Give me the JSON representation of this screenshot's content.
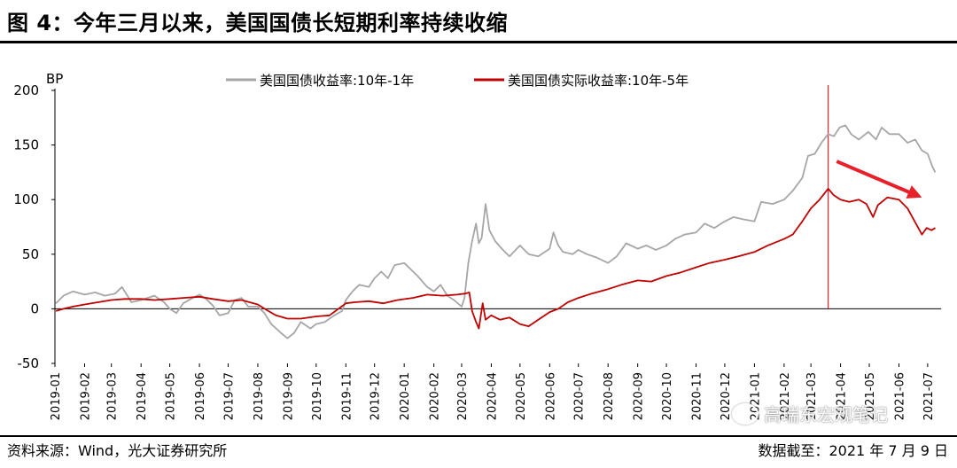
{
  "header": {
    "title": "图 4：今年三月以来，美国国债长短期利率持续收缩"
  },
  "footer": {
    "source": "资料来源：Wind，光大证券研究所",
    "date": "数据截至：2021 年 7 月 9 日"
  },
  "watermark": {
    "text": "高瑞东宏观笔记",
    "icon": "wechat-icon"
  },
  "chart_data": {
    "type": "line",
    "unit_label": "BP",
    "ylim": [
      -50,
      200
    ],
    "yticks": [
      -50,
      0,
      50,
      100,
      150,
      200
    ],
    "x_tick_labels": [
      "2019-01",
      "2019-02",
      "2019-03",
      "2019-04",
      "2019-05",
      "2019-06",
      "2019-07",
      "2019-08",
      "2019-09",
      "2019-10",
      "2019-11",
      "2019-12",
      "2020-01",
      "2020-02",
      "2020-03",
      "2020-04",
      "2020-05",
      "2020-06",
      "2020-07",
      "2020-08",
      "2020-09",
      "2020-10",
      "2020-11",
      "2020-12",
      "2021-01",
      "2021-02",
      "2021-03",
      "2021-04",
      "2021-05",
      "2021-06",
      "2021-07"
    ],
    "grid": false,
    "legend_position": "top",
    "vertical_marker": {
      "x": "2021-03-19",
      "color": "#e8202a"
    },
    "trend_arrow": {
      "from": [
        "2021-03-28",
        135
      ],
      "to": [
        "2021-06-25",
        102
      ],
      "color": "#e8202a"
    },
    "series": [
      {
        "name": "美国国债收益率:10年-1年",
        "color": "#a6a6a6",
        "points": [
          [
            "2019-01-02",
            5
          ],
          [
            "2019-01-10",
            12
          ],
          [
            "2019-01-20",
            16
          ],
          [
            "2019-02-01",
            13
          ],
          [
            "2019-02-12",
            15
          ],
          [
            "2019-02-22",
            12
          ],
          [
            "2019-03-05",
            14
          ],
          [
            "2019-03-12",
            20
          ],
          [
            "2019-03-22",
            6
          ],
          [
            "2019-04-01",
            8
          ],
          [
            "2019-04-15",
            12
          ],
          [
            "2019-04-25",
            6
          ],
          [
            "2019-05-01",
            0
          ],
          [
            "2019-05-08",
            -4
          ],
          [
            "2019-05-15",
            5
          ],
          [
            "2019-05-25",
            10
          ],
          [
            "2019-06-01",
            13
          ],
          [
            "2019-06-08",
            9
          ],
          [
            "2019-06-15",
            3
          ],
          [
            "2019-06-22",
            -6
          ],
          [
            "2019-07-01",
            -4
          ],
          [
            "2019-07-08",
            8
          ],
          [
            "2019-07-15",
            10
          ],
          [
            "2019-07-22",
            2
          ],
          [
            "2019-08-01",
            2
          ],
          [
            "2019-08-08",
            -4
          ],
          [
            "2019-08-15",
            -14
          ],
          [
            "2019-08-25",
            -22
          ],
          [
            "2019-09-01",
            -27
          ],
          [
            "2019-09-08",
            -22
          ],
          [
            "2019-09-15",
            -12
          ],
          [
            "2019-09-25",
            -18
          ],
          [
            "2019-10-01",
            -14
          ],
          [
            "2019-10-10",
            -12
          ],
          [
            "2019-10-20",
            -6
          ],
          [
            "2019-10-28",
            -2
          ],
          [
            "2019-11-01",
            8
          ],
          [
            "2019-11-08",
            16
          ],
          [
            "2019-11-15",
            22
          ],
          [
            "2019-11-25",
            20
          ],
          [
            "2019-12-01",
            28
          ],
          [
            "2019-12-08",
            34
          ],
          [
            "2019-12-15",
            28
          ],
          [
            "2019-12-22",
            40
          ],
          [
            "2020-01-01",
            42
          ],
          [
            "2020-01-08",
            36
          ],
          [
            "2020-01-15",
            30
          ],
          [
            "2020-01-25",
            20
          ],
          [
            "2020-02-01",
            16
          ],
          [
            "2020-02-08",
            22
          ],
          [
            "2020-02-15",
            12
          ],
          [
            "2020-02-22",
            8
          ],
          [
            "2020-03-01",
            2
          ],
          [
            "2020-03-04",
            10
          ],
          [
            "2020-03-08",
            42
          ],
          [
            "2020-03-12",
            62
          ],
          [
            "2020-03-16",
            78
          ],
          [
            "2020-03-19",
            60
          ],
          [
            "2020-03-22",
            65
          ],
          [
            "2020-03-26",
            96
          ],
          [
            "2020-03-30",
            72
          ],
          [
            "2020-04-05",
            62
          ],
          [
            "2020-04-12",
            55
          ],
          [
            "2020-04-20",
            48
          ],
          [
            "2020-05-01",
            58
          ],
          [
            "2020-05-10",
            50
          ],
          [
            "2020-05-20",
            48
          ],
          [
            "2020-06-01",
            55
          ],
          [
            "2020-06-05",
            70
          ],
          [
            "2020-06-10",
            58
          ],
          [
            "2020-06-15",
            52
          ],
          [
            "2020-06-25",
            50
          ],
          [
            "2020-07-01",
            54
          ],
          [
            "2020-07-10",
            50
          ],
          [
            "2020-07-20",
            47
          ],
          [
            "2020-08-01",
            42
          ],
          [
            "2020-08-10",
            48
          ],
          [
            "2020-08-20",
            60
          ],
          [
            "2020-09-01",
            55
          ],
          [
            "2020-09-10",
            58
          ],
          [
            "2020-09-20",
            54
          ],
          [
            "2020-10-01",
            58
          ],
          [
            "2020-10-10",
            64
          ],
          [
            "2020-10-20",
            68
          ],
          [
            "2020-11-01",
            70
          ],
          [
            "2020-11-10",
            78
          ],
          [
            "2020-11-20",
            74
          ],
          [
            "2020-12-01",
            80
          ],
          [
            "2020-12-10",
            84
          ],
          [
            "2020-12-20",
            82
          ],
          [
            "2021-01-01",
            80
          ],
          [
            "2021-01-08",
            98
          ],
          [
            "2021-01-20",
            96
          ],
          [
            "2021-02-01",
            100
          ],
          [
            "2021-02-10",
            108
          ],
          [
            "2021-02-20",
            120
          ],
          [
            "2021-02-26",
            140
          ],
          [
            "2021-03-05",
            142
          ],
          [
            "2021-03-12",
            152
          ],
          [
            "2021-03-19",
            160
          ],
          [
            "2021-03-25",
            158
          ],
          [
            "2021-03-31",
            166
          ],
          [
            "2021-04-06",
            168
          ],
          [
            "2021-04-12",
            160
          ],
          [
            "2021-04-20",
            155
          ],
          [
            "2021-04-30",
            162
          ],
          [
            "2021-05-08",
            155
          ],
          [
            "2021-05-14",
            166
          ],
          [
            "2021-05-22",
            160
          ],
          [
            "2021-06-01",
            160
          ],
          [
            "2021-06-10",
            152
          ],
          [
            "2021-06-18",
            155
          ],
          [
            "2021-06-25",
            145
          ],
          [
            "2021-07-01",
            142
          ],
          [
            "2021-07-06",
            130
          ],
          [
            "2021-07-09",
            125
          ]
        ]
      },
      {
        "name": "美国国债实际收益率:10年-5年",
        "color": "#c00000",
        "points": [
          [
            "2019-01-02",
            -2
          ],
          [
            "2019-01-10",
            0
          ],
          [
            "2019-01-20",
            2
          ],
          [
            "2019-02-01",
            4
          ],
          [
            "2019-02-15",
            6
          ],
          [
            "2019-03-01",
            8
          ],
          [
            "2019-03-15",
            9
          ],
          [
            "2019-04-01",
            9
          ],
          [
            "2019-04-15",
            8
          ],
          [
            "2019-05-01",
            9
          ],
          [
            "2019-05-15",
            10
          ],
          [
            "2019-06-01",
            11
          ],
          [
            "2019-06-15",
            9
          ],
          [
            "2019-07-01",
            7
          ],
          [
            "2019-07-15",
            8
          ],
          [
            "2019-08-01",
            4
          ],
          [
            "2019-08-10",
            -1
          ],
          [
            "2019-08-20",
            -6
          ],
          [
            "2019-09-01",
            -9
          ],
          [
            "2019-09-15",
            -9
          ],
          [
            "2019-10-01",
            -7
          ],
          [
            "2019-10-15",
            -6
          ],
          [
            "2019-11-01",
            5
          ],
          [
            "2019-11-10",
            6
          ],
          [
            "2019-11-25",
            7
          ],
          [
            "2019-12-10",
            5
          ],
          [
            "2019-12-25",
            8
          ],
          [
            "2020-01-10",
            10
          ],
          [
            "2020-01-25",
            13
          ],
          [
            "2020-02-10",
            12
          ],
          [
            "2020-02-25",
            13
          ],
          [
            "2020-03-05",
            14
          ],
          [
            "2020-03-09",
            15
          ],
          [
            "2020-03-12",
            -2
          ],
          [
            "2020-03-16",
            -12
          ],
          [
            "2020-03-19",
            -18
          ],
          [
            "2020-03-23",
            5
          ],
          [
            "2020-03-26",
            -10
          ],
          [
            "2020-04-01",
            -6
          ],
          [
            "2020-04-10",
            -10
          ],
          [
            "2020-04-20",
            -8
          ],
          [
            "2020-05-01",
            -14
          ],
          [
            "2020-05-10",
            -16
          ],
          [
            "2020-05-20",
            -10
          ],
          [
            "2020-06-01",
            -3
          ],
          [
            "2020-06-10",
            0
          ],
          [
            "2020-06-20",
            6
          ],
          [
            "2020-07-01",
            10
          ],
          [
            "2020-07-15",
            14
          ],
          [
            "2020-08-01",
            18
          ],
          [
            "2020-08-15",
            22
          ],
          [
            "2020-09-01",
            26
          ],
          [
            "2020-09-15",
            25
          ],
          [
            "2020-10-01",
            30
          ],
          [
            "2020-10-15",
            33
          ],
          [
            "2020-11-01",
            38
          ],
          [
            "2020-11-15",
            42
          ],
          [
            "2020-12-01",
            45
          ],
          [
            "2020-12-15",
            48
          ],
          [
            "2021-01-01",
            52
          ],
          [
            "2021-01-15",
            58
          ],
          [
            "2021-02-01",
            64
          ],
          [
            "2021-02-10",
            68
          ],
          [
            "2021-02-20",
            80
          ],
          [
            "2021-03-01",
            92
          ],
          [
            "2021-03-10",
            100
          ],
          [
            "2021-03-19",
            110
          ],
          [
            "2021-03-25",
            104
          ],
          [
            "2021-04-01",
            100
          ],
          [
            "2021-04-10",
            98
          ],
          [
            "2021-04-20",
            100
          ],
          [
            "2021-04-28",
            96
          ],
          [
            "2021-05-05",
            84
          ],
          [
            "2021-05-10",
            95
          ],
          [
            "2021-05-20",
            102
          ],
          [
            "2021-06-01",
            100
          ],
          [
            "2021-06-10",
            92
          ],
          [
            "2021-06-20",
            76
          ],
          [
            "2021-06-25",
            68
          ],
          [
            "2021-06-30",
            74
          ],
          [
            "2021-07-05",
            72
          ],
          [
            "2021-07-09",
            74
          ]
        ]
      }
    ]
  }
}
